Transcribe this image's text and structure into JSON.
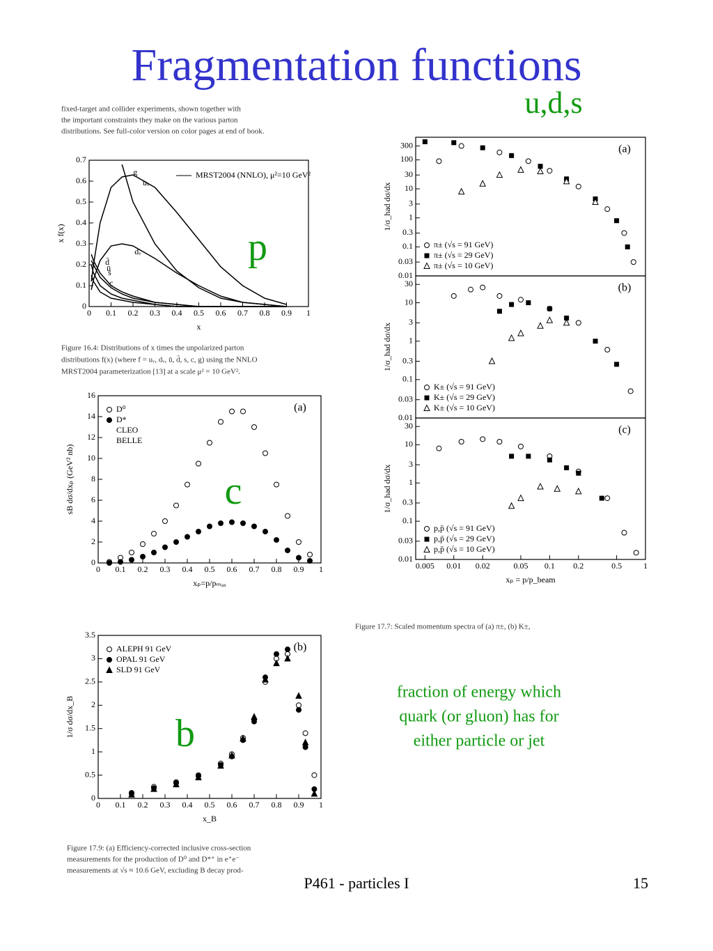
{
  "title": "Fragmentation functions",
  "labels": {
    "uds": "u,d,s",
    "p": "p",
    "c": "c",
    "b": "b"
  },
  "captions": {
    "top": [
      "fixed-target and collider experiments, shown together with",
      "the important constraints they make on the various parton",
      "distributions. See full-color version on color pages at end of book."
    ],
    "fig16_4": [
      "Figure 16.4: Distributions of x times the unpolarized parton",
      "distributions f(x) (where f = uᵥ, dᵥ, ū, d̄, s, c, g) using the NNLO",
      "MRST2004 parameterization [13] at a scale μ² = 10 GeV²."
    ],
    "fig17_7": "Figure 17.7:    Scaled momentum spectra of (a) π±, (b) K±,",
    "fig17_9": [
      "Figure 17.9:   (a) Efficiency-corrected inclusive cross-section",
      "measurements for the production of D⁰ and D*⁺ in e⁺e⁻",
      "measurements at √s ≈ 10.6 GeV, excluding B decay prod-"
    ]
  },
  "note": [
    "fraction of energy which",
    "quark (or gluon) has for",
    "either particle or jet"
  ],
  "footer": "P461 - particles I",
  "page_number": "15",
  "chart_data": [
    {
      "type": "line",
      "xlabel": "x",
      "ylabel": "x f(x)",
      "legend": "upper-right",
      "legend_title": "MRST2004 (NNLO), μ²=10 GeV²",
      "xlim": [
        0,
        1
      ],
      "ylim": [
        0,
        0.7
      ],
      "xticks": [
        0,
        0.1,
        0.2,
        0.3,
        0.4,
        0.5,
        0.6,
        0.7,
        0.8,
        0.9,
        1
      ],
      "yticks": [
        0,
        0.1,
        0.2,
        0.3,
        0.4,
        0.5,
        0.6,
        0.7
      ],
      "x": [
        0.01,
        0.02,
        0.05,
        0.1,
        0.15,
        0.2,
        0.3,
        0.4,
        0.5,
        0.6,
        0.7,
        0.8,
        0.9
      ],
      "series": [
        {
          "name": "uᵥ",
          "color": "#000000",
          "values": [
            0.12,
            0.2,
            0.4,
            0.57,
            0.62,
            0.63,
            0.57,
            0.45,
            0.32,
            0.19,
            0.1,
            0.04,
            0.01
          ]
        },
        {
          "name": "g",
          "color": "#000000",
          "values": [
            null,
            null,
            null,
            null,
            0.68,
            0.5,
            0.3,
            0.17,
            0.09,
            0.04,
            0.02,
            0.01,
            0
          ]
        },
        {
          "name": "dᵥ",
          "color": "#000000",
          "values": [
            0.08,
            0.13,
            0.22,
            0.29,
            0.3,
            0.29,
            0.23,
            0.16,
            0.1,
            0.05,
            0.02,
            0.01,
            0
          ]
        },
        {
          "name": "d̄",
          "color": "#000000",
          "values": [
            0.25,
            0.22,
            0.16,
            0.1,
            0.07,
            0.05,
            0.02,
            0.01,
            0,
            0,
            0,
            0,
            0
          ]
        },
        {
          "name": "ū",
          "color": "#000000",
          "values": [
            0.22,
            0.2,
            0.14,
            0.09,
            0.06,
            0.04,
            0.02,
            0.01,
            0,
            0,
            0,
            0,
            0
          ]
        },
        {
          "name": "s",
          "color": "#000000",
          "values": [
            0.2,
            0.16,
            0.1,
            0.06,
            0.04,
            0.03,
            0.01,
            0,
            0,
            0,
            0,
            0,
            0
          ]
        },
        {
          "name": "c",
          "color": "#000000",
          "values": [
            0.15,
            0.12,
            0.07,
            0.04,
            0.03,
            0.02,
            0.01,
            0,
            0,
            0,
            0,
            0,
            0
          ]
        }
      ]
    },
    {
      "type": "scatter",
      "annotation": "(a)",
      "xlabel": "xₚ=p/pₘₐₓ",
      "ylabel": "sB dσ/dxₚ  (GeV² nb)",
      "legend": "upper-left",
      "legend_rows": [
        "CLEO",
        "BELLE"
      ],
      "xlim": [
        0,
        1
      ],
      "ylim": [
        0,
        16
      ],
      "xticks": [
        0,
        0.1,
        0.2,
        0.3,
        0.4,
        0.5,
        0.6,
        0.7,
        0.8,
        0.9,
        1
      ],
      "yticks": [
        0,
        2,
        4,
        6,
        8,
        10,
        12,
        14,
        16
      ],
      "x": [
        0.05,
        0.1,
        0.15,
        0.2,
        0.25,
        0.3,
        0.35,
        0.4,
        0.45,
        0.5,
        0.55,
        0.6,
        0.65,
        0.7,
        0.75,
        0.8,
        0.85,
        0.9,
        0.95
      ],
      "series": [
        {
          "name": "D⁰",
          "color": "#000000",
          "marker": "circle-open",
          "values": [
            0.1,
            0.5,
            1,
            1.8,
            2.8,
            4,
            5.5,
            7.5,
            9.5,
            11.5,
            13.5,
            14.5,
            14.5,
            13,
            10.5,
            7.5,
            4.5,
            2,
            0.8
          ]
        },
        {
          "name": "D*",
          "color": "#000000",
          "marker": "circle",
          "values": [
            0,
            0.1,
            0.3,
            0.6,
            1,
            1.5,
            2,
            2.5,
            3,
            3.5,
            3.8,
            3.9,
            3.8,
            3.5,
            3,
            2.2,
            1.2,
            0.5,
            0.2
          ]
        }
      ]
    },
    {
      "type": "scatter",
      "annotation": "(b)",
      "xlabel": "x_B",
      "ylabel": "1/σ dσ/dx_B",
      "legend": "upper-left",
      "xlim": [
        0,
        1
      ],
      "ylim": [
        0,
        3.5
      ],
      "xticks": [
        0,
        0.1,
        0.2,
        0.3,
        0.4,
        0.5,
        0.6,
        0.7,
        0.8,
        0.9,
        1
      ],
      "yticks": [
        0,
        0.5,
        1,
        1.5,
        2,
        2.5,
        3,
        3.5
      ],
      "x": [
        0.15,
        0.25,
        0.35,
        0.45,
        0.55,
        0.6,
        0.65,
        0.7,
        0.75,
        0.8,
        0.85,
        0.9,
        0.93,
        0.97
      ],
      "series": [
        {
          "name": "ALEPH 91 GeV",
          "color": "#000000",
          "marker": "circle-open",
          "values": [
            0.1,
            0.25,
            0.35,
            0.5,
            0.75,
            0.95,
            1.3,
            1.7,
            2.5,
            3.0,
            3.1,
            2.0,
            1.4,
            0.5
          ]
        },
        {
          "name": "OPAL 91 GeV",
          "color": "#000000",
          "marker": "circle",
          "values": [
            0.12,
            0.22,
            0.33,
            0.48,
            0.72,
            0.9,
            1.25,
            1.65,
            2.6,
            3.1,
            3.2,
            1.9,
            1.1,
            0.2
          ]
        },
        {
          "name": "SLD 91 GeV",
          "color": "#000000",
          "marker": "triangle",
          "values": [
            0.08,
            0.2,
            0.3,
            0.45,
            0.7,
            0.92,
            1.28,
            1.75,
            2.55,
            2.9,
            3.0,
            2.2,
            1.2,
            0.1
          ]
        }
      ]
    },
    {
      "type": "scatter",
      "annotation": "(a)",
      "ylabel": "1/σ_had dσ/dx",
      "legend": "lower-left",
      "xlog": true,
      "ylog": true,
      "xlim": [
        0.004,
        1
      ],
      "ylim": [
        0.01,
        600
      ],
      "yticks": [
        0.01,
        0.03,
        0.1,
        0.3,
        1,
        3,
        10,
        30,
        100,
        300
      ],
      "series": [
        {
          "name": "π± (√s = 91 GeV)",
          "color": "#000000",
          "marker": "circle-open",
          "x": [
            0.007,
            0.012,
            0.03,
            0.06,
            0.1,
            0.2,
            0.4,
            0.6,
            0.75
          ],
          "values": [
            90,
            300,
            180,
            90,
            42,
            12,
            2,
            0.3,
            0.03
          ]
        },
        {
          "name": "π± (√s = 29 GeV)",
          "color": "#000000",
          "marker": "square",
          "x": [
            0.005,
            0.01,
            0.02,
            0.04,
            0.08,
            0.15,
            0.3,
            0.5,
            0.65
          ],
          "values": [
            420,
            390,
            260,
            140,
            60,
            22,
            4.5,
            0.8,
            0.1
          ]
        },
        {
          "name": "π± (√s = 10 GeV)",
          "color": "#000000",
          "marker": "triangle-open",
          "x": [
            0.012,
            0.02,
            0.03,
            0.05,
            0.08,
            0.15,
            0.3
          ],
          "values": [
            8,
            15,
            30,
            45,
            40,
            18,
            3.5
          ]
        }
      ]
    },
    {
      "type": "scatter",
      "annotation": "(b)",
      "ylabel": "1/σ_had dσ/dx",
      "legend": "lower-left",
      "xlog": true,
      "ylog": true,
      "xlim": [
        0.004,
        1
      ],
      "ylim": [
        0.01,
        50
      ],
      "yticks": [
        0.01,
        0.03,
        0.1,
        0.3,
        1,
        3,
        10,
        30
      ],
      "series": [
        {
          "name": "K± (√s = 91 GeV)",
          "color": "#000000",
          "marker": "circle-open",
          "x": [
            0.01,
            0.015,
            0.02,
            0.03,
            0.05,
            0.1,
            0.2,
            0.4,
            0.7
          ],
          "values": [
            15,
            22,
            25,
            15,
            12,
            7,
            3,
            0.6,
            0.05
          ]
        },
        {
          "name": "K± (√s = 29 GeV)",
          "color": "#000000",
          "marker": "square",
          "x": [
            0.03,
            0.04,
            0.06,
            0.1,
            0.15,
            0.3,
            0.5
          ],
          "values": [
            6,
            9,
            10,
            7,
            4,
            1,
            0.25
          ]
        },
        {
          "name": "K± (√s = 10 GeV)",
          "color": "#000000",
          "marker": "triangle-open",
          "x": [
            0.025,
            0.04,
            0.05,
            0.08,
            0.1,
            0.15
          ],
          "values": [
            0.3,
            1.2,
            1.6,
            2.5,
            3.5,
            3
          ]
        }
      ]
    },
    {
      "type": "scatter",
      "annotation": "(c)",
      "xlabel": "xₚ = p/p_beam",
      "ylabel": "1/σ_had dσ/dx",
      "legend": "lower-left",
      "xlog": true,
      "ylog": true,
      "xlim": [
        0.004,
        1
      ],
      "ylim": [
        0.01,
        50
      ],
      "xticks": [
        0.005,
        0.01,
        0.02,
        0.05,
        0.1,
        0.2,
        0.5,
        1
      ],
      "yticks": [
        0.01,
        0.03,
        0.1,
        0.3,
        1,
        3,
        10,
        30
      ],
      "series": [
        {
          "name": "p,p̄ (√s = 91 GeV)",
          "color": "#000000",
          "marker": "circle-open",
          "x": [
            0.007,
            0.012,
            0.02,
            0.03,
            0.05,
            0.1,
            0.2,
            0.4,
            0.6,
            0.8
          ],
          "values": [
            8,
            12,
            14,
            12,
            9,
            5,
            2,
            0.4,
            0.05,
            0.015
          ]
        },
        {
          "name": "p,p̄ (√s = 29 GeV)",
          "color": "#000000",
          "marker": "square",
          "x": [
            0.04,
            0.06,
            0.1,
            0.15,
            0.2,
            0.35
          ],
          "values": [
            5,
            5,
            4,
            2.5,
            1.8,
            0.4
          ]
        },
        {
          "name": "p,p̄ (√s = 10 GeV)",
          "color": "#000000",
          "marker": "triangle-open",
          "x": [
            0.04,
            0.05,
            0.08,
            0.12,
            0.2
          ],
          "values": [
            0.25,
            0.4,
            0.8,
            0.7,
            0.6
          ]
        }
      ]
    }
  ]
}
